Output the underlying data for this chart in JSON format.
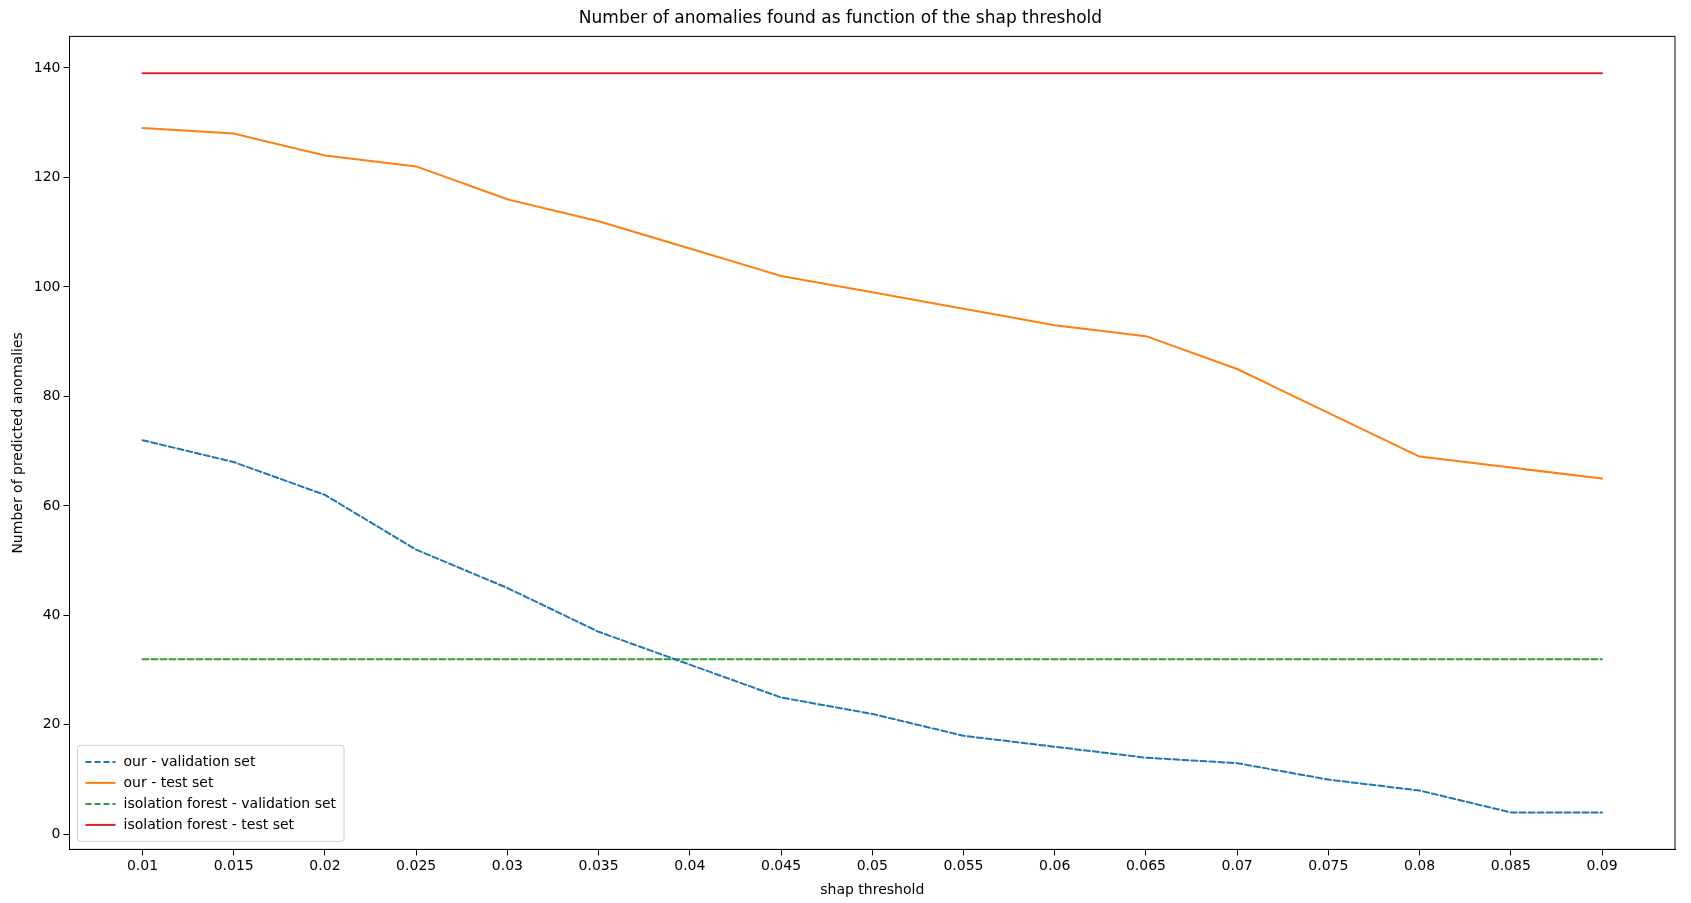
{
  "chart_data": {
    "type": "line",
    "title": "Number of anomalies found as function of the shap threshold",
    "xlabel": "shap threshold",
    "ylabel": "Number of predicted anomalies",
    "x": [
      0.01,
      0.015,
      0.02,
      0.025,
      0.03,
      0.035,
      0.04,
      0.045,
      0.05,
      0.055,
      0.06,
      0.065,
      0.07,
      0.075,
      0.08,
      0.085,
      0.09
    ],
    "series": [
      {
        "name": "our - validation set",
        "color": "#1f77b4",
        "line_style": "dashed",
        "values": [
          72,
          68,
          62,
          52,
          45,
          37,
          31,
          25,
          22,
          18,
          16,
          14,
          13,
          10,
          8,
          4,
          4
        ]
      },
      {
        "name": "our - test set",
        "color": "#ff7f0e",
        "line_style": "solid",
        "values": [
          129,
          128,
          124,
          122,
          116,
          112,
          107,
          102,
          99,
          96,
          93,
          91,
          85,
          77,
          69,
          67,
          65
        ]
      },
      {
        "name": "isolation forest - validation set",
        "color": "#2ca02c",
        "line_style": "dashed",
        "values": [
          32,
          32,
          32,
          32,
          32,
          32,
          32,
          32,
          32,
          32,
          32,
          32,
          32,
          32,
          32,
          32,
          32
        ]
      },
      {
        "name": "isolation forest - test set",
        "color": "#d62728",
        "line_style": "solid",
        "values": [
          139,
          139,
          139,
          139,
          139,
          139,
          139,
          139,
          139,
          139,
          139,
          139,
          139,
          139,
          139,
          139,
          139
        ]
      }
    ],
    "xlim": [
      0.006,
      0.094
    ],
    "xticks": [
      0.01,
      0.015,
      0.02,
      0.025,
      0.03,
      0.035,
      0.04,
      0.045,
      0.05,
      0.055,
      0.06,
      0.065,
      0.07,
      0.075,
      0.08,
      0.085,
      0.09
    ],
    "ylim": [
      -2.75,
      145.75
    ],
    "yticks": [
      0,
      20,
      40,
      60,
      80,
      100,
      120,
      140
    ],
    "legend": "bottom left",
    "marker": "none"
  }
}
